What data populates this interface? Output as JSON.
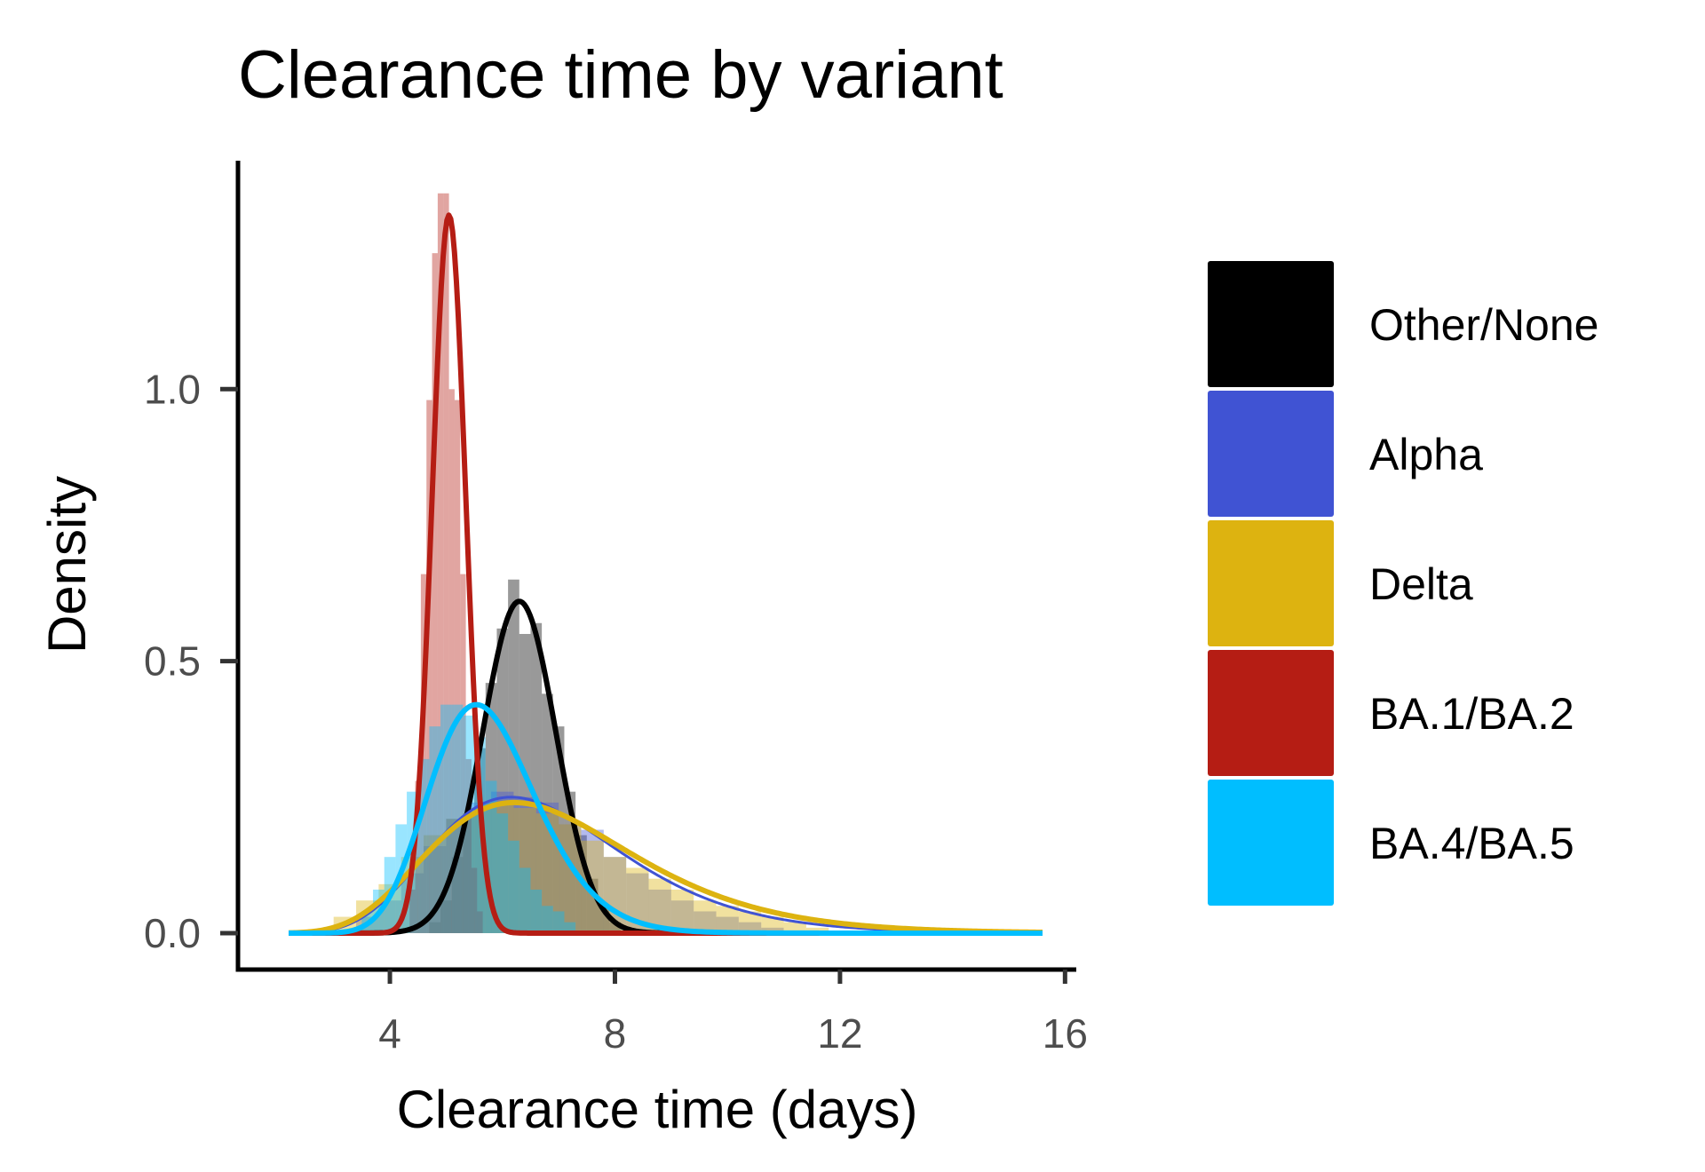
{
  "chart_data": {
    "type": "area",
    "title": "Clearance time by variant",
    "xlabel": "Clearance time (days)",
    "ylabel": "Density",
    "xlim": [
      1.3,
      16.2
    ],
    "ylim": [
      -0.067,
      1.42
    ],
    "x_ticks": [
      {
        "value": 4,
        "label": "4"
      },
      {
        "value": 8,
        "label": "8"
      },
      {
        "value": 12,
        "label": "12"
      },
      {
        "value": 16,
        "label": "16"
      }
    ],
    "y_ticks": [
      {
        "value": 0.0,
        "label": "0.0"
      },
      {
        "value": 0.5,
        "label": "0.5"
      },
      {
        "value": 1.0,
        "label": "1.0"
      }
    ],
    "grid": false,
    "legend_position": "right",
    "curve_x_range": [
      2.2,
      15.6
    ],
    "series": [
      {
        "name": "Other/None",
        "color": "#000000",
        "curve": {
          "distribution": "normal",
          "mean": 6.3,
          "sd": 0.65,
          "peak": 0.61
        },
        "histogram": {
          "bin_width": 0.2,
          "bins": [
            [
              4.8,
              0.02
            ],
            [
              5.0,
              0.06
            ],
            [
              5.2,
              0.14
            ],
            [
              5.4,
              0.22
            ],
            [
              5.6,
              0.34
            ],
            [
              5.8,
              0.46
            ],
            [
              6.0,
              0.56
            ],
            [
              6.2,
              0.65
            ],
            [
              6.4,
              0.55
            ],
            [
              6.6,
              0.57
            ],
            [
              6.8,
              0.44
            ],
            [
              7.0,
              0.38
            ],
            [
              7.2,
              0.26
            ],
            [
              7.4,
              0.18
            ],
            [
              7.6,
              0.1
            ],
            [
              7.8,
              0.05
            ],
            [
              8.0,
              0.02
            ]
          ]
        }
      },
      {
        "name": "Alpha",
        "color": "#4053d3",
        "curve": {
          "distribution": "lognormal",
          "meanlog": 1.89,
          "sdlog": 0.27,
          "peak": 0.25
        },
        "histogram": {
          "bin_width": 0.4,
          "bins": [
            [
              3.6,
              0.03
            ],
            [
              4.0,
              0.06
            ],
            [
              4.4,
              0.11
            ],
            [
              4.8,
              0.16
            ],
            [
              5.2,
              0.21
            ],
            [
              5.6,
              0.24
            ],
            [
              6.0,
              0.26
            ],
            [
              6.4,
              0.25
            ],
            [
              6.8,
              0.24
            ],
            [
              7.2,
              0.2
            ],
            [
              7.6,
              0.19
            ],
            [
              8.0,
              0.14
            ],
            [
              8.4,
              0.11
            ],
            [
              8.8,
              0.08
            ],
            [
              9.2,
              0.06
            ],
            [
              9.6,
              0.04
            ],
            [
              10.0,
              0.03
            ],
            [
              10.4,
              0.02
            ],
            [
              10.8,
              0.01
            ]
          ]
        }
      },
      {
        "name": "Delta",
        "color": "#ddb310",
        "curve": {
          "distribution": "lognormal",
          "meanlog": 1.91,
          "sdlog": 0.29,
          "peak": 0.24
        },
        "histogram": {
          "bin_width": 0.4,
          "bins": [
            [
              3.2,
              0.03
            ],
            [
              3.6,
              0.06
            ],
            [
              4.0,
              0.09
            ],
            [
              4.4,
              0.14
            ],
            [
              4.8,
              0.18
            ],
            [
              5.2,
              0.21
            ],
            [
              5.6,
              0.23
            ],
            [
              6.0,
              0.24
            ],
            [
              6.4,
              0.23
            ],
            [
              6.8,
              0.22
            ],
            [
              7.2,
              0.2
            ],
            [
              7.6,
              0.17
            ],
            [
              8.0,
              0.14
            ],
            [
              8.4,
              0.12
            ],
            [
              8.8,
              0.1
            ],
            [
              9.2,
              0.08
            ],
            [
              9.6,
              0.06
            ],
            [
              10.0,
              0.05
            ],
            [
              10.4,
              0.04
            ],
            [
              10.8,
              0.03
            ],
            [
              11.2,
              0.02
            ],
            [
              11.6,
              0.01
            ]
          ]
        }
      },
      {
        "name": "BA.1/BA.2",
        "color": "#b51d14",
        "curve": {
          "distribution": "normal",
          "mean": 5.05,
          "sd": 0.3,
          "peak": 1.32
        },
        "histogram": {
          "bin_width": 0.1,
          "bins": [
            [
              4.4,
              0.08
            ],
            [
              4.5,
              0.28
            ],
            [
              4.6,
              0.66
            ],
            [
              4.7,
              0.98
            ],
            [
              4.8,
              1.25
            ],
            [
              4.9,
              1.36
            ],
            [
              5.0,
              1.36
            ],
            [
              5.1,
              1.0
            ],
            [
              5.2,
              0.98
            ],
            [
              5.3,
              0.66
            ],
            [
              5.4,
              0.32
            ],
            [
              5.5,
              0.12
            ],
            [
              5.6,
              0.04
            ]
          ]
        }
      },
      {
        "name": "BA.4/BA.5",
        "color": "#00beff",
        "curve": {
          "distribution": "lognormal",
          "meanlog": 1.74,
          "sdlog": 0.17,
          "peak": 0.42
        },
        "histogram": {
          "bin_width": 0.2,
          "bins": [
            [
              3.6,
              0.04
            ],
            [
              3.8,
              0.08
            ],
            [
              4.0,
              0.14
            ],
            [
              4.2,
              0.2
            ],
            [
              4.4,
              0.26
            ],
            [
              4.6,
              0.32
            ],
            [
              4.8,
              0.38
            ],
            [
              5.0,
              0.42
            ],
            [
              5.2,
              0.42
            ],
            [
              5.4,
              0.4
            ],
            [
              5.6,
              0.36
            ],
            [
              5.8,
              0.28
            ],
            [
              6.0,
              0.22
            ],
            [
              6.2,
              0.17
            ],
            [
              6.4,
              0.12
            ],
            [
              6.6,
              0.08
            ],
            [
              6.8,
              0.05
            ],
            [
              7.0,
              0.04
            ],
            [
              7.2,
              0.02
            ]
          ]
        }
      }
    ]
  }
}
